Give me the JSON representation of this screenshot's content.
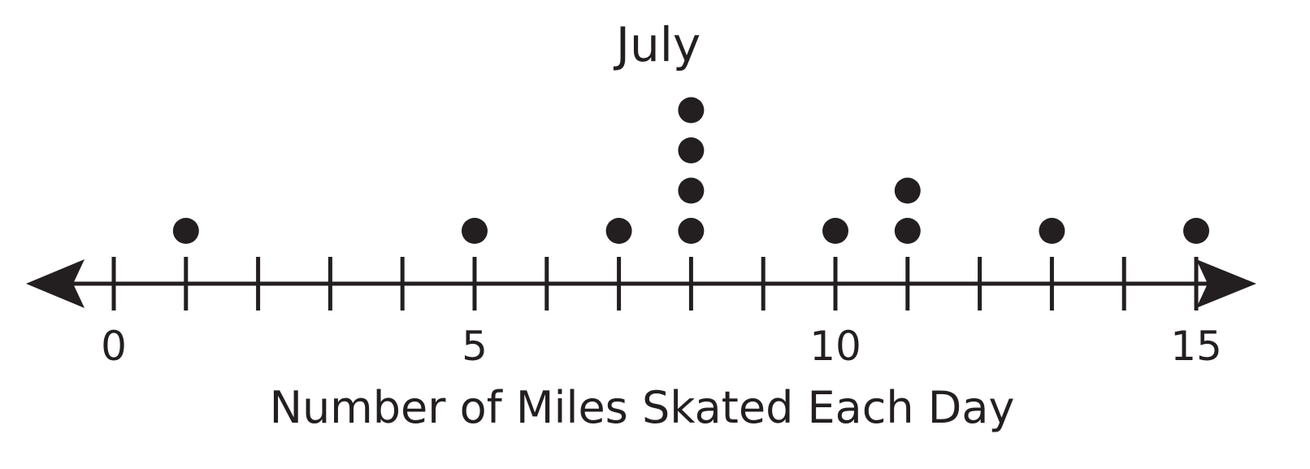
{
  "chart_data": {
    "type": "dot-plot",
    "title": "July",
    "xlabel": "Number of Miles Skated Each Day",
    "xlim": [
      0,
      15
    ],
    "tick_step": 1,
    "tick_labels": [
      {
        "value": 0,
        "label": "0"
      },
      {
        "value": 5,
        "label": "5"
      },
      {
        "value": 10,
        "label": "10"
      },
      {
        "value": 15,
        "label": "15"
      }
    ],
    "points": [
      {
        "x": 1,
        "count": 1
      },
      {
        "x": 5,
        "count": 1
      },
      {
        "x": 7,
        "count": 1
      },
      {
        "x": 8,
        "count": 4
      },
      {
        "x": 10,
        "count": 1
      },
      {
        "x": 11,
        "count": 2
      },
      {
        "x": 13,
        "count": 1
      },
      {
        "x": 15,
        "count": 1
      }
    ],
    "color": "#231f20",
    "arrows_both_ends": true
  }
}
